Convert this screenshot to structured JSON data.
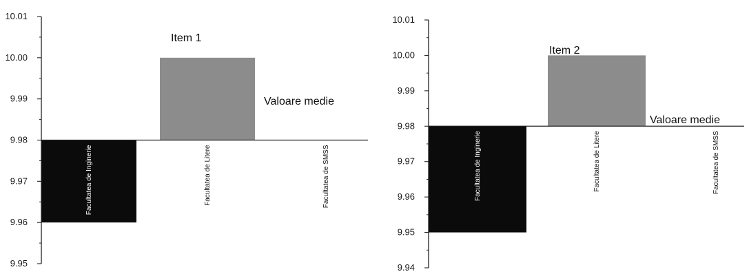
{
  "colors": {
    "background": "#ffffff",
    "axis": "#222222",
    "bar_engineering": "#0b0b0b",
    "bar_litere": "#8c8c8c",
    "bar_smss": "#c8c8c8"
  },
  "chart_data": [
    {
      "type": "bar",
      "title": "Item 1",
      "annotation": "Valoare medie",
      "baseline": 9.98,
      "categories": [
        "Facultatea de Inginerie",
        "Facultatea de Litere",
        "Facultatea de SMSS"
      ],
      "values": [
        9.96,
        10.0,
        9.98
      ],
      "ylim": [
        9.95,
        10.01
      ],
      "yticks": [
        "9.95",
        "9.96",
        "9.97",
        "9.98",
        "9.99",
        "10.00",
        "10.01"
      ],
      "xlabel": "",
      "ylabel": "",
      "grid": false,
      "legend": "none"
    },
    {
      "type": "bar",
      "title": "Item 2",
      "annotation": "Valoare medie",
      "baseline": 9.98,
      "categories": [
        "Facultatea de Inginerie",
        "Facultatea de Litere",
        "Facultatea de SMSS"
      ],
      "values": [
        9.95,
        10.0,
        9.98
      ],
      "ylim": [
        9.94,
        10.01
      ],
      "yticks": [
        "9.94",
        "9.95",
        "9.96",
        "9.97",
        "9.98",
        "9.99",
        "10.00",
        "10.01"
      ],
      "xlabel": "",
      "ylabel": "",
      "grid": false,
      "legend": "none"
    }
  ]
}
